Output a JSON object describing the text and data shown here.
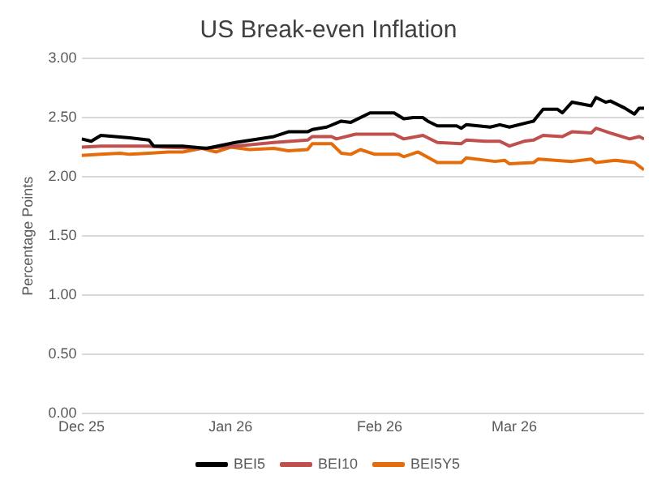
{
  "chart_data": {
    "type": "line",
    "title": "US Break-even Inflation",
    "ylabel": "Percentage Points",
    "xlim": [
      "2025-12-01",
      "2026-03-28"
    ],
    "xticks": [
      {
        "value": "2025-12-01",
        "label": "Dec 25"
      },
      {
        "value": "2026-01-01",
        "label": "Jan 26"
      },
      {
        "value": "2026-02-01",
        "label": "Feb 26"
      },
      {
        "value": "2026-03-01",
        "label": "Mar 26"
      }
    ],
    "ylim": [
      0,
      3
    ],
    "yticks": [
      {
        "value": 0,
        "label": "0.00"
      },
      {
        "value": 0.5,
        "label": "0.50"
      },
      {
        "value": 1,
        "label": "1.00"
      },
      {
        "value": 1.5,
        "label": "1.50"
      },
      {
        "value": 2,
        "label": "2.00"
      },
      {
        "value": 2.5,
        "label": "2.50"
      },
      {
        "value": 3,
        "label": "3.00"
      }
    ],
    "grid": "y",
    "legend": "bottom",
    "marker": "none",
    "line_style": "solid",
    "series": [
      {
        "name": "BEI5",
        "color": "#000000",
        "x": [
          "2025-12-01",
          "2025-12-03",
          "2025-12-05",
          "2025-12-11",
          "2025-12-15",
          "2025-12-16",
          "2025-12-22",
          "2025-12-27",
          "2026-01-02",
          "2026-01-10",
          "2026-01-13",
          "2026-01-17",
          "2026-01-18",
          "2026-01-21",
          "2026-01-24",
          "2026-01-26",
          "2026-01-30",
          "2026-02-04",
          "2026-02-06",
          "2026-02-08",
          "2026-02-10",
          "2026-02-11",
          "2026-02-13",
          "2026-02-17",
          "2026-02-18",
          "2026-02-19",
          "2026-02-24",
          "2026-02-26",
          "2026-02-28",
          "2026-03-04",
          "2026-03-05",
          "2026-03-07",
          "2026-03-10",
          "2026-03-11",
          "2026-03-13",
          "2026-03-17",
          "2026-03-18",
          "2026-03-20",
          "2026-03-21",
          "2026-03-24",
          "2026-03-26",
          "2026-03-27",
          "2026-03-28"
        ],
        "values": [
          2.32,
          2.3,
          2.35,
          2.33,
          2.31,
          2.26,
          2.26,
          2.24,
          2.29,
          2.34,
          2.38,
          2.38,
          2.4,
          2.42,
          2.47,
          2.46,
          2.54,
          2.54,
          2.49,
          2.5,
          2.5,
          2.47,
          2.43,
          2.43,
          2.41,
          2.44,
          2.42,
          2.44,
          2.42,
          2.46,
          2.47,
          2.57,
          2.57,
          2.54,
          2.63,
          2.6,
          2.67,
          2.63,
          2.64,
          2.58,
          2.53,
          2.58,
          2.58
        ]
      },
      {
        "name": "BEI10",
        "color": "#c0504d",
        "x": [
          "2025-12-01",
          "2025-12-05",
          "2025-12-15",
          "2025-12-18",
          "2025-12-26",
          "2026-01-02",
          "2026-01-10",
          "2026-01-17",
          "2026-01-18",
          "2026-01-22",
          "2026-01-23",
          "2026-01-27",
          "2026-02-04",
          "2026-02-06",
          "2026-02-10",
          "2026-02-13",
          "2026-02-18",
          "2026-02-19",
          "2026-02-23",
          "2026-02-26",
          "2026-02-28",
          "2026-03-03",
          "2026-03-05",
          "2026-03-07",
          "2026-03-11",
          "2026-03-13",
          "2026-03-17",
          "2026-03-18",
          "2026-03-21",
          "2026-03-25",
          "2026-03-27",
          "2026-03-28"
        ],
        "values": [
          2.25,
          2.26,
          2.26,
          2.25,
          2.24,
          2.26,
          2.29,
          2.31,
          2.34,
          2.34,
          2.32,
          2.36,
          2.36,
          2.32,
          2.35,
          2.29,
          2.28,
          2.31,
          2.3,
          2.3,
          2.26,
          2.3,
          2.31,
          2.35,
          2.34,
          2.38,
          2.37,
          2.41,
          2.37,
          2.32,
          2.34,
          2.32
        ]
      },
      {
        "name": "BEI5Y5",
        "color": "#e46c0a",
        "x": [
          "2025-12-01",
          "2025-12-05",
          "2025-12-09",
          "2025-12-11",
          "2025-12-15",
          "2025-12-19",
          "2025-12-22",
          "2025-12-26",
          "2025-12-29",
          "2026-01-01",
          "2026-01-05",
          "2026-01-10",
          "2026-01-13",
          "2026-01-17",
          "2026-01-18",
          "2026-01-22",
          "2026-01-24",
          "2026-01-26",
          "2026-01-28",
          "2026-01-31",
          "2026-02-05",
          "2026-02-06",
          "2026-02-09",
          "2026-02-13",
          "2026-02-18",
          "2026-02-19",
          "2026-02-25",
          "2026-02-27",
          "2026-02-28",
          "2026-03-05",
          "2026-03-06",
          "2026-03-13",
          "2026-03-17",
          "2026-03-18",
          "2026-03-22",
          "2026-03-26",
          "2026-03-28"
        ],
        "values": [
          2.18,
          2.19,
          2.2,
          2.19,
          2.2,
          2.21,
          2.21,
          2.24,
          2.21,
          2.25,
          2.23,
          2.24,
          2.22,
          2.23,
          2.28,
          2.28,
          2.2,
          2.19,
          2.23,
          2.19,
          2.19,
          2.17,
          2.21,
          2.12,
          2.12,
          2.16,
          2.13,
          2.14,
          2.11,
          2.12,
          2.15,
          2.13,
          2.15,
          2.12,
          2.14,
          2.12,
          2.06
        ]
      }
    ]
  }
}
